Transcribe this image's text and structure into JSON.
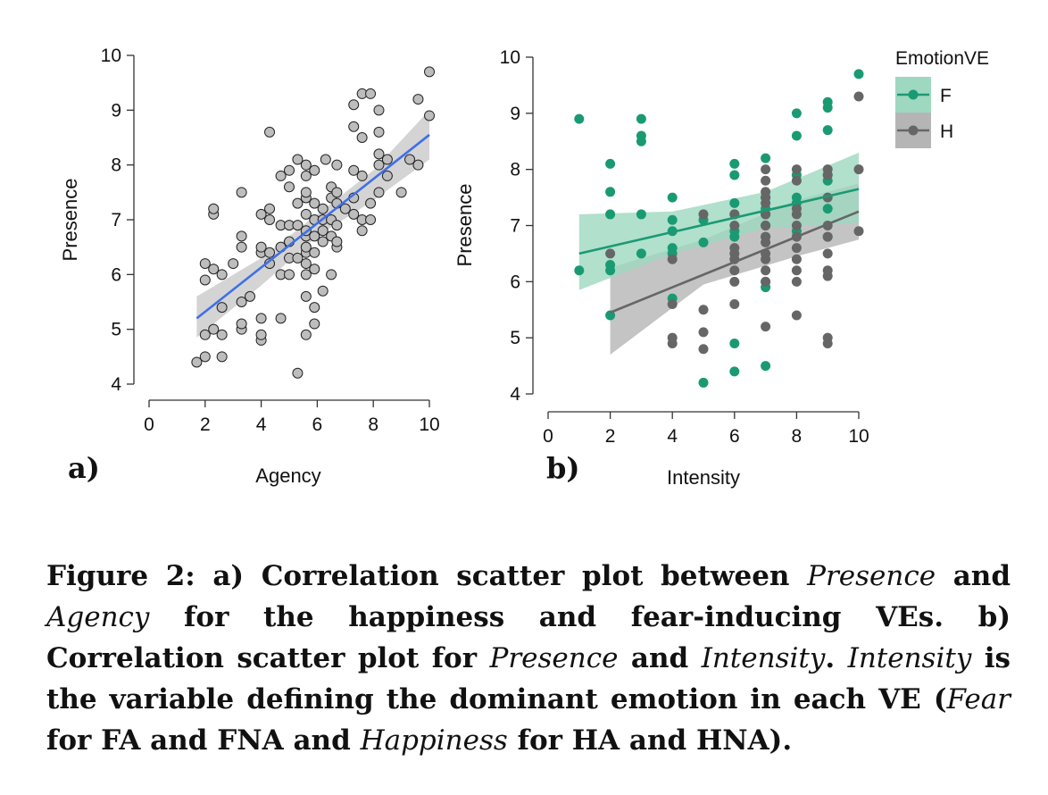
{
  "chart_data": [
    {
      "type": "scatter",
      "panel_label": "a)",
      "xlabel": "Agency",
      "ylabel": "Presence",
      "xlim": [
        0,
        10
      ],
      "ylim": [
        4,
        10
      ],
      "xticks": [
        0,
        2,
        4,
        6,
        8,
        10
      ],
      "yticks": [
        4,
        5,
        6,
        7,
        8,
        9,
        10
      ],
      "point_color": "#bdbdbd",
      "point_edge": "#222222",
      "fit_color": "#3f6fe8",
      "band_color": "#cccccc",
      "fit": {
        "x": [
          1.7,
          10
        ],
        "y": [
          5.2,
          8.55
        ]
      },
      "band": {
        "x": [
          1.7,
          4,
          6,
          8,
          10
        ],
        "upper": [
          5.6,
          6.3,
          7.1,
          7.9,
          9.0
        ],
        "lower": [
          4.85,
          5.8,
          6.7,
          7.35,
          8.1
        ]
      },
      "points": [
        [
          1.7,
          4.4
        ],
        [
          2,
          4.5
        ],
        [
          2,
          4.9
        ],
        [
          2,
          5.9
        ],
        [
          2,
          6.2
        ],
        [
          2.3,
          5
        ],
        [
          2.3,
          6.1
        ],
        [
          2.3,
          7.1
        ],
        [
          2.3,
          7.2
        ],
        [
          2.6,
          4.5
        ],
        [
          2.6,
          4.9
        ],
        [
          2.6,
          5.4
        ],
        [
          2.6,
          6
        ],
        [
          3,
          6.2
        ],
        [
          3.3,
          5
        ],
        [
          3.3,
          5.1
        ],
        [
          3.3,
          5.5
        ],
        [
          3.3,
          6.5
        ],
        [
          3.3,
          6.7
        ],
        [
          3.3,
          7.5
        ],
        [
          3.6,
          5.6
        ],
        [
          4,
          4.8
        ],
        [
          4,
          4.9
        ],
        [
          4,
          5.2
        ],
        [
          4,
          6.4
        ],
        [
          4,
          6.5
        ],
        [
          4,
          7.1
        ],
        [
          4.3,
          6.2
        ],
        [
          4.3,
          6.4
        ],
        [
          4.3,
          7
        ],
        [
          4.3,
          7.2
        ],
        [
          4.3,
          8.6
        ],
        [
          4.7,
          5.2
        ],
        [
          4.7,
          6
        ],
        [
          4.7,
          6.5
        ],
        [
          4.7,
          6.9
        ],
        [
          4.7,
          7.8
        ],
        [
          5,
          6
        ],
        [
          5,
          6.3
        ],
        [
          5,
          6.6
        ],
        [
          5,
          6.9
        ],
        [
          5,
          7.6
        ],
        [
          5,
          7.9
        ],
        [
          5.3,
          4.2
        ],
        [
          5.3,
          6.3
        ],
        [
          5.3,
          6.9
        ],
        [
          5.3,
          7.3
        ],
        [
          5.3,
          8.1
        ],
        [
          5.6,
          4.9
        ],
        [
          5.6,
          5.6
        ],
        [
          5.6,
          6
        ],
        [
          5.6,
          6.2
        ],
        [
          5.6,
          6.4
        ],
        [
          5.6,
          6.5
        ],
        [
          5.6,
          6.7
        ],
        [
          5.6,
          6.8
        ],
        [
          5.6,
          7.1
        ],
        [
          5.6,
          7.4
        ],
        [
          5.6,
          7.5
        ],
        [
          5.6,
          7.8
        ],
        [
          5.6,
          8
        ],
        [
          5.9,
          5.1
        ],
        [
          5.9,
          5.4
        ],
        [
          5.9,
          6.1
        ],
        [
          5.9,
          6.4
        ],
        [
          5.9,
          6.7
        ],
        [
          5.9,
          7
        ],
        [
          5.9,
          7.3
        ],
        [
          5.9,
          7.9
        ],
        [
          6.2,
          5.7
        ],
        [
          6.2,
          6.6
        ],
        [
          6.2,
          6.8
        ],
        [
          6.2,
          7
        ],
        [
          6.2,
          7.2
        ],
        [
          6.3,
          8.1
        ],
        [
          6.5,
          6
        ],
        [
          6.5,
          6.7
        ],
        [
          6.5,
          7
        ],
        [
          6.5,
          7.4
        ],
        [
          6.5,
          7.6
        ],
        [
          6.7,
          6.5
        ],
        [
          6.7,
          6.6
        ],
        [
          6.7,
          6.9
        ],
        [
          6.7,
          7.3
        ],
        [
          6.7,
          7.5
        ],
        [
          6.7,
          8
        ],
        [
          7,
          7.2
        ],
        [
          7.3,
          7.1
        ],
        [
          7.3,
          7.4
        ],
        [
          7.3,
          7.9
        ],
        [
          7.3,
          8.7
        ],
        [
          7.3,
          9.1
        ],
        [
          7.6,
          6.8
        ],
        [
          7.6,
          7
        ],
        [
          7.6,
          7.8
        ],
        [
          7.6,
          8.5
        ],
        [
          7.6,
          9.3
        ],
        [
          7.9,
          7
        ],
        [
          7.9,
          7.3
        ],
        [
          7.9,
          9.3
        ],
        [
          8.2,
          7.5
        ],
        [
          8.2,
          8
        ],
        [
          8.2,
          8.2
        ],
        [
          8.2,
          8.6
        ],
        [
          8.2,
          9
        ],
        [
          8.5,
          7.8
        ],
        [
          8.5,
          8.1
        ],
        [
          9,
          7.5
        ],
        [
          9.3,
          8.1
        ],
        [
          9.6,
          8
        ],
        [
          9.6,
          9.2
        ],
        [
          10,
          8.9
        ],
        [
          10,
          9.7
        ]
      ]
    },
    {
      "type": "scatter",
      "panel_label": "b)",
      "xlabel": "Intensity",
      "ylabel": "Presence",
      "xlim": [
        0,
        10
      ],
      "ylim": [
        4,
        10
      ],
      "xticks": [
        0,
        2,
        4,
        6,
        8,
        10
      ],
      "yticks": [
        4,
        5,
        6,
        7,
        8,
        9,
        10
      ],
      "legend": {
        "title": "EmotionVE",
        "position": "right"
      },
      "series": [
        {
          "name": "F",
          "color": "#1a9a73",
          "band_color": "#9ed8c0",
          "fit": {
            "x": [
              1,
              10
            ],
            "y": [
              6.5,
              7.65
            ]
          },
          "band": {
            "x": [
              1,
              4,
              7,
              10
            ],
            "upper": [
              7.2,
              7.25,
              7.6,
              8.3
            ],
            "lower": [
              5.85,
              6.5,
              6.95,
              7.05
            ]
          },
          "points": [
            [
              1,
              6.2
            ],
            [
              1,
              8.9
            ],
            [
              2,
              5.4
            ],
            [
              2,
              6.2
            ],
            [
              2,
              6.3
            ],
            [
              2,
              7.2
            ],
            [
              2,
              7.6
            ],
            [
              2,
              8.1
            ],
            [
              3,
              6.5
            ],
            [
              3,
              7.2
            ],
            [
              3,
              8.5
            ],
            [
              3,
              8.6
            ],
            [
              3,
              8.9
            ],
            [
              4,
              5.7
            ],
            [
              4,
              6.5
            ],
            [
              4,
              6.6
            ],
            [
              4,
              6.9
            ],
            [
              4,
              7.1
            ],
            [
              4,
              7.5
            ],
            [
              5,
              4.2
            ],
            [
              5,
              6.7
            ],
            [
              5,
              7.1
            ],
            [
              6,
              4.4
            ],
            [
              6,
              4.9
            ],
            [
              6,
              6.8
            ],
            [
              6,
              6.9
            ],
            [
              6,
              7.2
            ],
            [
              6,
              7.4
            ],
            [
              6,
              7.9
            ],
            [
              6,
              8.1
            ],
            [
              7,
              4.5
            ],
            [
              7,
              5.9
            ],
            [
              7,
              6
            ],
            [
              7,
              6.8
            ],
            [
              7,
              7
            ],
            [
              7,
              7.2
            ],
            [
              7,
              7.3
            ],
            [
              7,
              7.5
            ],
            [
              7,
              8.2
            ],
            [
              8,
              6.9
            ],
            [
              8,
              7.4
            ],
            [
              8,
              7.5
            ],
            [
              8,
              7.9
            ],
            [
              8,
              8.6
            ],
            [
              8,
              9
            ],
            [
              9,
              6.8
            ],
            [
              9,
              7.3
            ],
            [
              9,
              7.8
            ],
            [
              9,
              7.9
            ],
            [
              9,
              8.7
            ],
            [
              9,
              9.1
            ],
            [
              9,
              9.2
            ],
            [
              10,
              9.7
            ]
          ]
        },
        {
          "name": "H",
          "color": "#666666",
          "band_color": "#b5b5b5",
          "fit": {
            "x": [
              2,
              10
            ],
            "y": [
              5.45,
              7.25
            ]
          },
          "band": {
            "x": [
              2,
              5,
              8,
              10
            ],
            "upper": [
              6.25,
              6.75,
              7.45,
              7.75
            ],
            "lower": [
              4.7,
              5.95,
              6.45,
              6.75
            ]
          },
          "points": [
            [
              2,
              6.5
            ],
            [
              4,
              4.9
            ],
            [
              4,
              5
            ],
            [
              4,
              5.6
            ],
            [
              4,
              6.4
            ],
            [
              5,
              4.8
            ],
            [
              5,
              5.1
            ],
            [
              5,
              5.5
            ],
            [
              5,
              7.2
            ],
            [
              6,
              5.6
            ],
            [
              6,
              6
            ],
            [
              6,
              6.2
            ],
            [
              6,
              6.4
            ],
            [
              6,
              6.5
            ],
            [
              6,
              6.6
            ],
            [
              6,
              7
            ],
            [
              6,
              7.2
            ],
            [
              7,
              5.2
            ],
            [
              7,
              6
            ],
            [
              7,
              6.2
            ],
            [
              7,
              6.4
            ],
            [
              7,
              6.5
            ],
            [
              7,
              6.7
            ],
            [
              7,
              6.8
            ],
            [
              7,
              7
            ],
            [
              7,
              7.2
            ],
            [
              7,
              7.4
            ],
            [
              7,
              7.5
            ],
            [
              7,
              7.6
            ],
            [
              7,
              7.8
            ],
            [
              7,
              8
            ],
            [
              8,
              5.4
            ],
            [
              8,
              6
            ],
            [
              8,
              6.2
            ],
            [
              8,
              6.4
            ],
            [
              8,
              6.6
            ],
            [
              8,
              6.8
            ],
            [
              8,
              7
            ],
            [
              8,
              7.2
            ],
            [
              8,
              7.3
            ],
            [
              8,
              7.8
            ],
            [
              8,
              8
            ],
            [
              9,
              4.9
            ],
            [
              9,
              5
            ],
            [
              9,
              6.1
            ],
            [
              9,
              6.2
            ],
            [
              9,
              6.5
            ],
            [
              9,
              6.8
            ],
            [
              9,
              7
            ],
            [
              9,
              7.5
            ],
            [
              9,
              7.9
            ],
            [
              9,
              8
            ],
            [
              10,
              6.9
            ],
            [
              10,
              8
            ],
            [
              10,
              9.3
            ]
          ]
        }
      ]
    }
  ],
  "caption": {
    "parts": [
      {
        "text": "Figure 2: a) Correlation scatter plot between ",
        "italic": false
      },
      {
        "text": "Presence",
        "italic": true
      },
      {
        "text": " and ",
        "italic": false
      },
      {
        "text": "Agency",
        "italic": true
      },
      {
        "text": " for the happiness and fear-inducing VEs. b) Correlation scatter plot for ",
        "italic": false
      },
      {
        "text": "Presence",
        "italic": true
      },
      {
        "text": " and ",
        "italic": false
      },
      {
        "text": "Intensity",
        "italic": true
      },
      {
        "text": ". ",
        "italic": false
      },
      {
        "text": "Intensity",
        "italic": true
      },
      {
        "text": " is the variable defining the dominant emotion in each VE (",
        "italic": false
      },
      {
        "text": "Fear",
        "italic": true
      },
      {
        "text": " for FA and FNA and ",
        "italic": false
      },
      {
        "text": "Happiness",
        "italic": true
      },
      {
        "text": " for HA and HNA).",
        "italic": false
      }
    ]
  }
}
